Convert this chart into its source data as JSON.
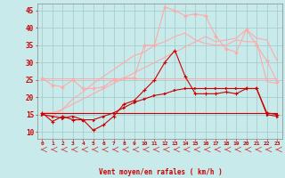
{
  "x": [
    0,
    1,
    2,
    3,
    4,
    5,
    6,
    7,
    8,
    9,
    10,
    11,
    12,
    13,
    14,
    15,
    16,
    17,
    18,
    19,
    20,
    21,
    22,
    23
  ],
  "line1": [
    25.5,
    25.5,
    25.5,
    25.5,
    25.5,
    25.5,
    25.5,
    25.5,
    25.5,
    25.5,
    25.5,
    25.5,
    25.5,
    25.5,
    25.5,
    25.5,
    25.5,
    25.5,
    25.5,
    25.5,
    25.5,
    25.5,
    25.5,
    25.5
  ],
  "line2": [
    15.5,
    15.5,
    16.5,
    18.0,
    19.5,
    21.0,
    22.5,
    24.0,
    25.5,
    27.0,
    28.5,
    30.0,
    31.5,
    33.0,
    34.5,
    36.0,
    37.5,
    36.0,
    36.5,
    37.0,
    39.5,
    37.0,
    36.5,
    30.5
  ],
  "line3": [
    15.0,
    14.5,
    16.5,
    19.5,
    21.5,
    24.0,
    26.0,
    28.0,
    30.0,
    32.0,
    33.0,
    35.0,
    36.0,
    37.5,
    38.5,
    36.5,
    35.5,
    35.0,
    35.0,
    36.5,
    36.0,
    36.0,
    24.5,
    24.0
  ],
  "line4": [
    25.5,
    23.5,
    23.0,
    25.0,
    22.5,
    22.5,
    23.0,
    25.0,
    25.5,
    25.5,
    35.0,
    35.0,
    46.0,
    45.0,
    43.5,
    44.0,
    43.5,
    37.5,
    34.0,
    33.0,
    39.5,
    35.0,
    30.5,
    24.5
  ],
  "line5": [
    15.5,
    13.0,
    14.5,
    13.5,
    13.5,
    10.5,
    12.0,
    14.5,
    18.0,
    19.0,
    22.0,
    25.0,
    30.0,
    33.5,
    26.0,
    21.0,
    21.0,
    21.0,
    21.5,
    21.0,
    22.5,
    22.5,
    15.5,
    15.0
  ],
  "line6": [
    15.5,
    15.5,
    15.5,
    15.5,
    15.5,
    15.5,
    15.5,
    15.5,
    15.5,
    15.5,
    15.5,
    15.5,
    15.5,
    15.5,
    15.5,
    15.5,
    15.5,
    15.5,
    15.5,
    15.5,
    15.5,
    15.5,
    15.5,
    15.5
  ],
  "line7": [
    15.0,
    14.5,
    14.0,
    14.5,
    13.5,
    13.5,
    14.5,
    15.5,
    17.0,
    18.5,
    19.5,
    20.5,
    21.0,
    22.0,
    22.5,
    22.5,
    22.5,
    22.5,
    22.5,
    22.5,
    22.5,
    22.5,
    15.0,
    14.5
  ],
  "bg_color": "#c8eaea",
  "grid_color": "#a0c8c8",
  "line_pink": "#ffaaaa",
  "line_red": "#cc0000",
  "xlabel": "Vent moyen/en rafales ( km/h )",
  "ylim_min": 8,
  "ylim_max": 47,
  "xlim_min": -0.5,
  "xlim_max": 23.5,
  "yticks": [
    10,
    15,
    20,
    25,
    30,
    35,
    40,
    45
  ]
}
